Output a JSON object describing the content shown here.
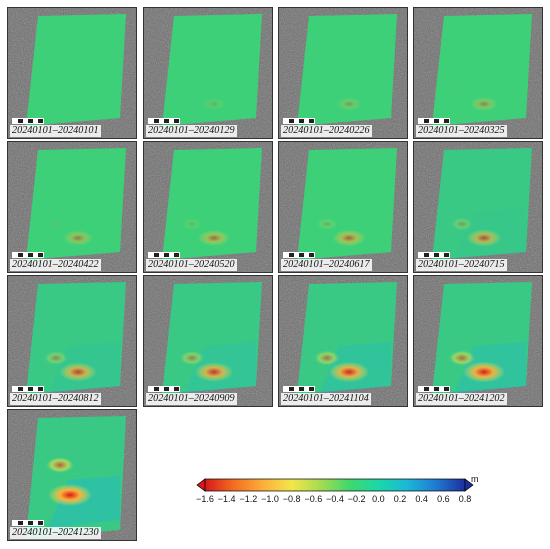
{
  "panels": [
    {
      "label": "20240101–20240101",
      "intensity": 0.0
    },
    {
      "label": "20240101–20240129",
      "intensity": 0.15
    },
    {
      "label": "20240101–20240226",
      "intensity": 0.25
    },
    {
      "label": "20240101–20240325",
      "intensity": 0.35
    },
    {
      "label": "20240101–20240422",
      "intensity": 0.42
    },
    {
      "label": "20240101–20240520",
      "intensity": 0.5
    },
    {
      "label": "20240101–20240617",
      "intensity": 0.55
    },
    {
      "label": "20240101–20240715",
      "intensity": 0.62
    },
    {
      "label": "20240101–20240812",
      "intensity": 0.72
    },
    {
      "label": "20240101–20240909",
      "intensity": 0.78
    },
    {
      "label": "20240101–20241104",
      "intensity": 0.86
    },
    {
      "label": "20240101–20241202",
      "intensity": 0.92
    },
    {
      "label": "20240101–20241230",
      "intensity": 1.0
    }
  ],
  "colorbar": {
    "unit": "m",
    "ticks": [
      "−1.6",
      "−1.4",
      "−1.2",
      "−1.0",
      "−0.8",
      "−0.6",
      "−0.4",
      "−0.2",
      "0.0",
      "0.2",
      "0.4",
      "0.6",
      "0.8"
    ],
    "colors": [
      "#d7191c",
      "#f46d20",
      "#fdae3a",
      "#f3e64a",
      "#a6dc50",
      "#3fd86c",
      "#19d8a8",
      "#1ab8d8",
      "#1f7ad2",
      "#1c2f9e"
    ]
  }
}
